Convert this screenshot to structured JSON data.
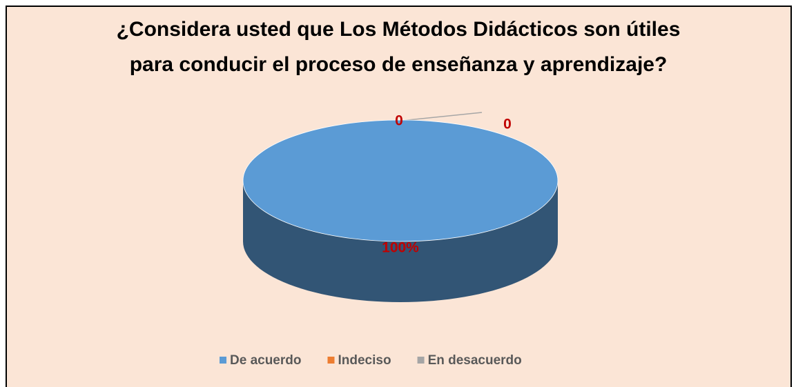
{
  "chart_data": {
    "type": "pie",
    "title": [
      "¿Considera usted que Los Métodos Didácticos son útiles",
      "para conducir el proceso de enseñanza y aprendizaje?"
    ],
    "categories": [
      "De acuerdo",
      "Indeciso",
      "En desacuerdo"
    ],
    "values": [
      100,
      0,
      0
    ],
    "value_labels": [
      "100%",
      "0",
      "0"
    ],
    "colors": [
      "#5b9bd5",
      "#ed7d31",
      "#a5a5a5"
    ],
    "legend": "bottom"
  }
}
